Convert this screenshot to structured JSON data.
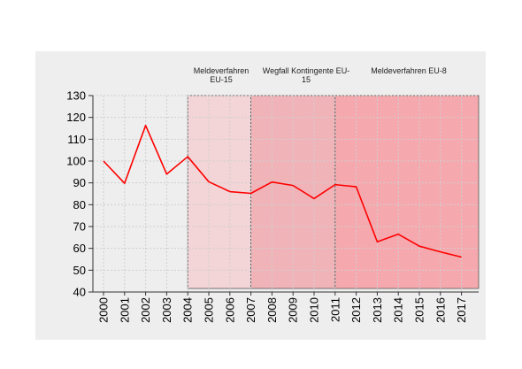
{
  "chart_data": {
    "type": "line",
    "title": "",
    "xlabel": "",
    "ylabel": "",
    "ylim": [
      40,
      130
    ],
    "yticks": [
      40,
      50,
      60,
      70,
      80,
      90,
      100,
      110,
      120,
      130
    ],
    "x": [
      "2000",
      "2001",
      "2002",
      "2003",
      "2004",
      "2005",
      "2006",
      "2007",
      "2008",
      "2009",
      "2010",
      "2011",
      "2012",
      "2013",
      "2014",
      "2015",
      "2016",
      "2017"
    ],
    "series": [
      {
        "values": [
          100,
          89.8,
          116.3,
          94,
          102,
          90.5,
          86,
          85.2,
          90.4,
          88.8,
          82.8,
          89.2,
          88.2,
          63,
          66.5,
          61,
          58.4,
          56
        ]
      }
    ],
    "grid": true,
    "colors": {
      "series": "#ff0000",
      "panel": "#eeeeee",
      "band1": "#f3d4d7",
      "band2": "#f0b3b8",
      "band3": "#f5a9ae"
    },
    "bands": [
      {
        "from": "2004",
        "to": "2007",
        "label_lines": [
          "Meldeverfahren",
          "EU-15"
        ]
      },
      {
        "from": "2007",
        "to": "2011",
        "label_lines": [
          "Wegfall Kontingente EU-",
          "15"
        ]
      },
      {
        "from": "2011",
        "to": "2017",
        "label_lines": [
          "Meldeverfahren  EU-8"
        ]
      }
    ]
  }
}
